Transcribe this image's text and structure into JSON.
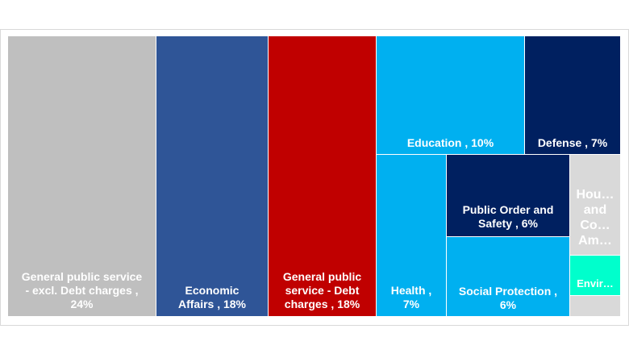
{
  "chart_data": {
    "type": "treemap",
    "items": [
      {
        "label": "General public service - excl. Debt charges , 24%",
        "lines": [
          "General public service",
          "- excl. Debt charges ,",
          "24%"
        ],
        "value": 24,
        "color": "#bfbfbf"
      },
      {
        "label": "Economic Affairs , 18%",
        "lines": [
          "Economic",
          "Affairs , 18%"
        ],
        "value": 18,
        "color": "#2f5597"
      },
      {
        "label": "General public service - Debt charges , 18%",
        "lines": [
          "General public",
          "service - Debt",
          "charges , 18%"
        ],
        "value": 18,
        "color": "#c00000"
      },
      {
        "label": "Education , 10%",
        "lines": [
          "Education , 10%"
        ],
        "value": 10,
        "color": "#00b0f0"
      },
      {
        "label": "Defense , 7%",
        "lines": [
          "Defense , 7%"
        ],
        "value": 7,
        "color": "#002060"
      },
      {
        "label": "Health , 7%",
        "lines": [
          "Health ,",
          "7%"
        ],
        "value": 7,
        "color": "#00b0f0"
      },
      {
        "label": "Public Order and Safety , 6%",
        "lines": [
          "Public Order and",
          "Safety , 6%"
        ],
        "value": 6,
        "color": "#002060"
      },
      {
        "label": "Social Protection , 6%",
        "lines": [
          "Social Protection ,",
          "6%"
        ],
        "value": 6,
        "color": "#00b0f0"
      },
      {
        "label": "Hou... and Co... Am...",
        "lines": [
          "Hou…",
          "and",
          "Co…",
          "Am…"
        ],
        "color": "#d9d9d9"
      },
      {
        "label": "Envir...",
        "lines": [
          "Envir…"
        ],
        "color": "#00ffcc"
      },
      {
        "label": "",
        "lines": [],
        "color": "#d9d9d9"
      }
    ]
  }
}
